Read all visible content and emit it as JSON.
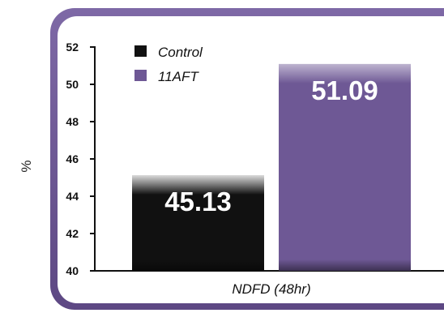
{
  "chart_data": {
    "type": "bar",
    "categories": [
      "NDFD (48hr)"
    ],
    "series": [
      {
        "name": "Control",
        "values": [
          45.13
        ],
        "color": "#111111"
      },
      {
        "name": "11AFT",
        "values": [
          51.09
        ],
        "color": "#6e5895"
      }
    ],
    "value_labels": [
      "45.13",
      "51.09"
    ],
    "xlabel": "NDFD (48hr)",
    "ylabel": "%",
    "ylim": [
      40,
      52
    ],
    "yticks": [
      52,
      50,
      48,
      46,
      44,
      42,
      40
    ],
    "legend_position": "top-left",
    "grid": false,
    "frame_color": "#6e5895"
  }
}
